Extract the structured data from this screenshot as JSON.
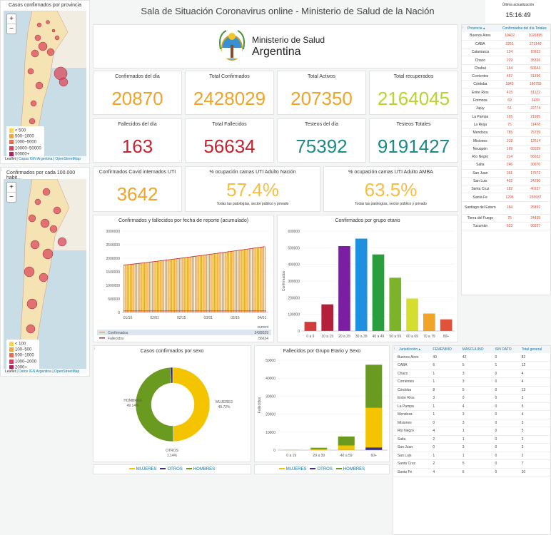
{
  "header": {
    "title": "Sala de Situación Coronavirus online - Ministerio de Salud de la Nación",
    "update_label": "Última actualización",
    "update_time": "15:16:49"
  },
  "logo": {
    "line1": "Ministerio de Salud",
    "line2": "Argentina"
  },
  "maps": {
    "m1": {
      "title": "Casos confirmados por provincia",
      "zoom_in": "+",
      "zoom_out": "−",
      "legend": [
        "< 500",
        "500–1000",
        "1000–5000",
        "10000–50000",
        "50000+"
      ],
      "attribution_pre": "Leaflet | ",
      "attribution_link": "Capas IGN Argentina",
      "attribution_mid": " | ",
      "attribution_osm": "OpenStreetMap"
    },
    "m2": {
      "title": "Confirmados por cada 100.000 habit...",
      "zoom_in": "+",
      "zoom_out": "−",
      "legend": [
        "< 100",
        "100–500",
        "500–1000",
        "1000–2000",
        "2000+"
      ],
      "attribution_pre": "Leaflet | ",
      "attribution_link": "Datos IGN Argentina",
      "attribution_mid": " | ",
      "attribution_osm": "OpenStreetMap"
    }
  },
  "kpis": [
    {
      "label": "Confirmados del día",
      "value": "20870",
      "color": "#f0a428"
    },
    {
      "label": "Total Confirmados",
      "value": "2428029",
      "color": "#f0a428"
    },
    {
      "label": "Total Activos",
      "value": "207350",
      "color": "#f0a428"
    },
    {
      "label": "Total recuperados",
      "value": "2164045",
      "color": "#b8d432"
    },
    {
      "label": "Fallecidos del día",
      "value": "163",
      "color": "#c4222f"
    },
    {
      "label": "Total Fallecidos",
      "value": "56634",
      "color": "#c4222f"
    },
    {
      "label": "Testeos del día",
      "value": "75392",
      "color": "#1c8a87"
    },
    {
      "label": "Testeos Totales",
      "value": "9191427",
      "color": "#1c8a87"
    }
  ],
  "uti": [
    {
      "label": "Confirmados Covid internados UTI",
      "value": "3642",
      "color": "#f0a428",
      "note": ""
    },
    {
      "label": "% ocupación camas UTI Adulto Nación",
      "value": "57.4%",
      "color": "#f5be42",
      "note": "Todas las patologías, sector público y privado"
    },
    {
      "label": "% ocupación camas UTI Adulto AMBA",
      "value": "63.5%",
      "color": "#f5be42",
      "note": "Todas las patologías, sector público y privado"
    }
  ],
  "prov_table": {
    "col1": "Provincia ▴",
    "col2": "Confirmados del día Totales",
    "rows": [
      [
        "Buenos Aires",
        "10402",
        "1026895"
      ],
      [
        "CABA",
        "2251",
        "273149"
      ],
      [
        "Catamarca",
        "124",
        "10933"
      ],
      [
        "Chaco",
        "229",
        "35336"
      ],
      [
        "Chubut",
        "164",
        "50643"
      ],
      [
        "Corrientes",
        "457",
        "31396"
      ],
      [
        "Córdoba",
        "1843",
        "186755"
      ],
      [
        "Entre Ríos",
        "415",
        "51122"
      ],
      [
        "Formosa",
        "69",
        "2439"
      ],
      [
        "Jujuy",
        "51",
        "22774"
      ],
      [
        "La Pampa",
        "165",
        "21995"
      ],
      [
        "La Rioja",
        "75",
        "11478"
      ],
      [
        "Mendoza",
        "785",
        "75739"
      ],
      [
        "Misiones",
        "218",
        "12614"
      ],
      [
        "Neuquén",
        "169",
        "65559"
      ],
      [
        "Río Negro",
        "214",
        "56932"
      ],
      [
        "Salta",
        "246",
        "30970"
      ],
      [
        "San Juan",
        "251",
        "17572"
      ],
      [
        "San Luis",
        "402",
        "24290"
      ],
      [
        "Santa Cruz",
        "182",
        "40137"
      ],
      [
        "Santa Fe",
        "1296",
        "235937"
      ],
      [
        "Santiago del Estero",
        "184",
        "25892"
      ],
      [
        "Tierra del Fuego",
        "75",
        "24439"
      ],
      [
        "Tucumán",
        "623",
        "90227"
      ]
    ]
  },
  "juris_table": {
    "headers": [
      "Jurisdicción ▴",
      "FEMENINO",
      "MASCULINO",
      "SIN DATO",
      "Total general"
    ],
    "rows": [
      [
        "Buenos Aires",
        "40",
        "42",
        "0",
        "82"
      ],
      [
        "CABA",
        "6",
        "5",
        "1",
        "12"
      ],
      [
        "Chaco",
        "1",
        "3",
        "0",
        "4"
      ],
      [
        "Corrientes",
        "1",
        "3",
        "0",
        "4"
      ],
      [
        "Córdoba",
        "8",
        "5",
        "0",
        "13"
      ],
      [
        "Entre Ríos",
        "3",
        "0",
        "0",
        "3"
      ],
      [
        "La Pampa",
        "1",
        "4",
        "0",
        "5"
      ],
      [
        "Mendoza",
        "1",
        "3",
        "0",
        "4"
      ],
      [
        "Misiones",
        "0",
        "3",
        "0",
        "3"
      ],
      [
        "Río Negro",
        "4",
        "1",
        "0",
        "5"
      ],
      [
        "Salta",
        "2",
        "1",
        "0",
        "3"
      ],
      [
        "San Juan",
        "0",
        "3",
        "0",
        "3"
      ],
      [
        "San Luis",
        "1",
        "1",
        "0",
        "2"
      ],
      [
        "Santa Cruz",
        "2",
        "5",
        "0",
        "7"
      ],
      [
        "Santa Fe",
        "4",
        "6",
        "0",
        "10"
      ]
    ]
  },
  "chart_data": [
    {
      "type": "area",
      "title": "Confirmados y fallecidos por fecha de reporte (acumulado)",
      "x_ticks": [
        "01/16",
        "02/01",
        "02/15",
        "03/01",
        "03/16",
        "04/01"
      ],
      "ylim": [
        0,
        3000000
      ],
      "y_ticks": [
        "0",
        "500000",
        "1000000",
        "1500000",
        "2000000",
        "2500000",
        "3000000"
      ],
      "series": [
        {
          "name": "Confirmados",
          "start": 1750000,
          "end": 2428029,
          "color": "#f0a428"
        },
        {
          "name": "Fallecidos",
          "start": 45000,
          "end": 56634,
          "color": "#c4222f"
        }
      ],
      "legend_header": "current",
      "legend_values": [
        "2428029",
        "56634"
      ]
    },
    {
      "type": "bar",
      "title": "Confirmados por grupo etario",
      "ylabel": "Confirmados",
      "categories": [
        "0 a 9",
        "10 a 19",
        "20 a 29",
        "30 a 39",
        "40 a 49",
        "50 a 59",
        "60 a 69",
        "70 a 79",
        "80+"
      ],
      "values": [
        55000,
        160000,
        510000,
        555000,
        460000,
        320000,
        195000,
        105000,
        70000
      ],
      "ylim": [
        0,
        600000
      ],
      "y_ticks": [
        "0",
        "100000",
        "200000",
        "300000",
        "400000",
        "500000",
        "600000"
      ],
      "colors": [
        "#d23b3b",
        "#b61f3a",
        "#7a1fa2",
        "#1e90e0",
        "#2a9d3c",
        "#7cb32b",
        "#d5de2e",
        "#f0a428",
        "#e0523a"
      ]
    },
    {
      "type": "pie",
      "title": "Casos confirmados por sexo",
      "slices": [
        {
          "name": "MUJERES",
          "value": 49.72,
          "color": "#f5c400"
        },
        {
          "name": "HOMBRES",
          "value": 49.14,
          "color": "#6a9a1f"
        },
        {
          "name": "OTROS",
          "value": 1.14,
          "color": "#3a2d8a"
        }
      ],
      "labels": {
        "mujeres": "MUJERES",
        "mujeres_pct": "49.72%",
        "hombres": "HOMBRES",
        "hombres_pct": "49.14%",
        "otros": "OTROS",
        "otros_pct": "1.14%"
      },
      "legend": [
        "MUJERES",
        "OTROS",
        "HOMBRES"
      ]
    },
    {
      "type": "bar",
      "title": "Fallecidos por Grupo Etario y Sexo",
      "ylabel": "Fallecidos",
      "categories": [
        "0 a 19",
        "20 a 39",
        "40 a 59",
        "60+"
      ],
      "series": [
        {
          "name": "MUJERES",
          "values": [
            60,
            500,
            2500,
            22000
          ],
          "color": "#f5c400"
        },
        {
          "name": "OTROS",
          "values": [
            5,
            20,
            80,
            1500
          ],
          "color": "#3a2d8a"
        },
        {
          "name": "HOMBRES",
          "values": [
            80,
            800,
            5000,
            24000
          ],
          "color": "#6a9a1f"
        }
      ],
      "ylim": [
        0,
        50000
      ],
      "y_ticks": [
        "0",
        "10000",
        "20000",
        "30000",
        "40000",
        "50000"
      ],
      "legend": [
        "MUJERES",
        "OTROS",
        "HOMBRES"
      ]
    }
  ]
}
